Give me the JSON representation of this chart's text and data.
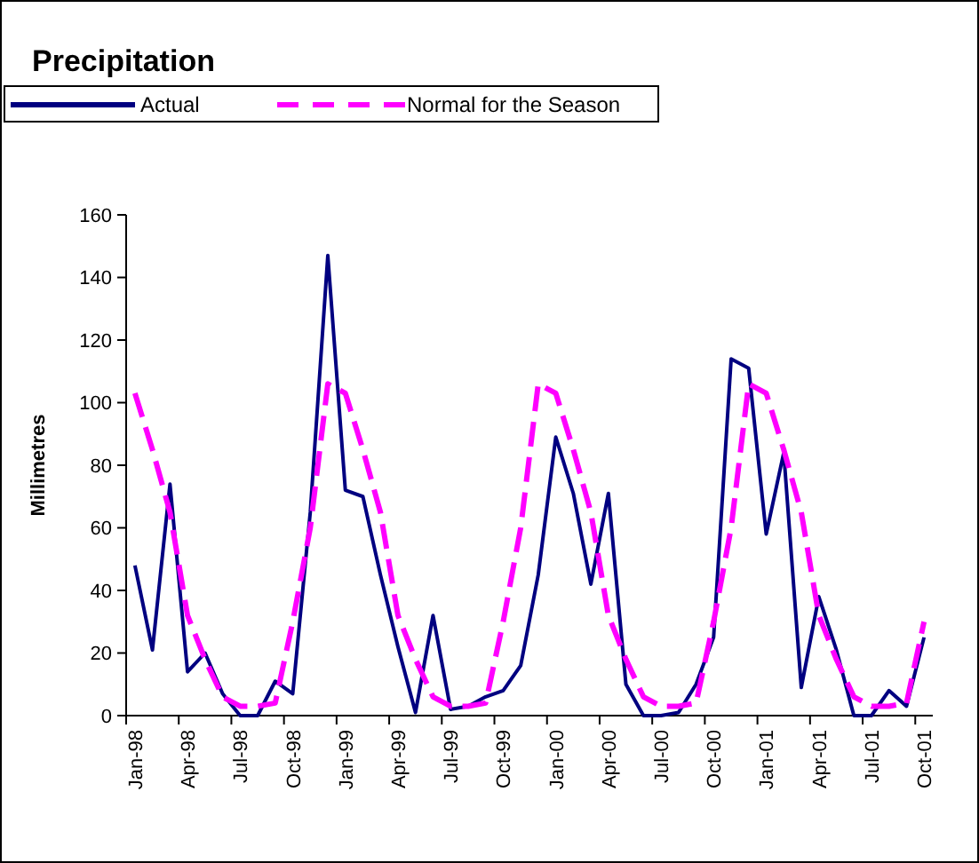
{
  "chart_data": {
    "type": "line",
    "title": "Precipitation",
    "ylabel": "Millimetres",
    "categories": [
      "Jan-98",
      null,
      null,
      "Apr-98",
      null,
      null,
      "Jul-98",
      null,
      null,
      "Oct-98",
      null,
      null,
      "Jan-99",
      null,
      null,
      "Apr-99",
      null,
      null,
      "Jul-99",
      null,
      null,
      "Oct-99",
      null,
      null,
      "Jan-00",
      null,
      null,
      "Apr-00",
      null,
      null,
      "Jul-00",
      null,
      null,
      "Oct-00",
      null,
      null,
      "Jan-01",
      null,
      null,
      "Apr-01",
      null,
      null,
      "Jul-01",
      null,
      null,
      "Oct-01"
    ],
    "series": [
      {
        "name": "Actual",
        "color": "#000080",
        "line_style": "solid",
        "values": [
          48,
          21,
          74,
          14,
          20,
          7,
          0,
          0,
          11,
          7,
          65,
          147,
          72,
          70,
          45,
          22,
          1,
          32,
          2,
          3,
          6,
          8,
          16,
          45,
          89,
          71,
          42,
          71,
          10,
          0,
          0,
          1,
          10,
          25,
          114,
          111,
          58,
          84,
          9,
          38,
          21,
          0,
          0,
          8,
          3,
          25
        ]
      },
      {
        "name": "Normal for the Season",
        "color": "#ff00ff",
        "line_style": "dashed",
        "values": [
          103,
          85,
          65,
          32,
          18,
          6,
          3,
          3,
          4,
          30,
          60,
          106,
          103,
          85,
          65,
          32,
          18,
          6,
          3,
          3,
          4,
          30,
          60,
          106,
          103,
          85,
          65,
          32,
          18,
          6,
          3,
          3,
          4,
          30,
          60,
          106,
          103,
          85,
          65,
          32,
          18,
          6,
          3,
          3,
          4,
          30
        ]
      }
    ],
    "ylim": [
      0,
      160
    ],
    "yticks": [
      0,
      20,
      40,
      60,
      80,
      100,
      120,
      140,
      160
    ],
    "grid": false,
    "legend": "top left",
    "marker": "none"
  }
}
